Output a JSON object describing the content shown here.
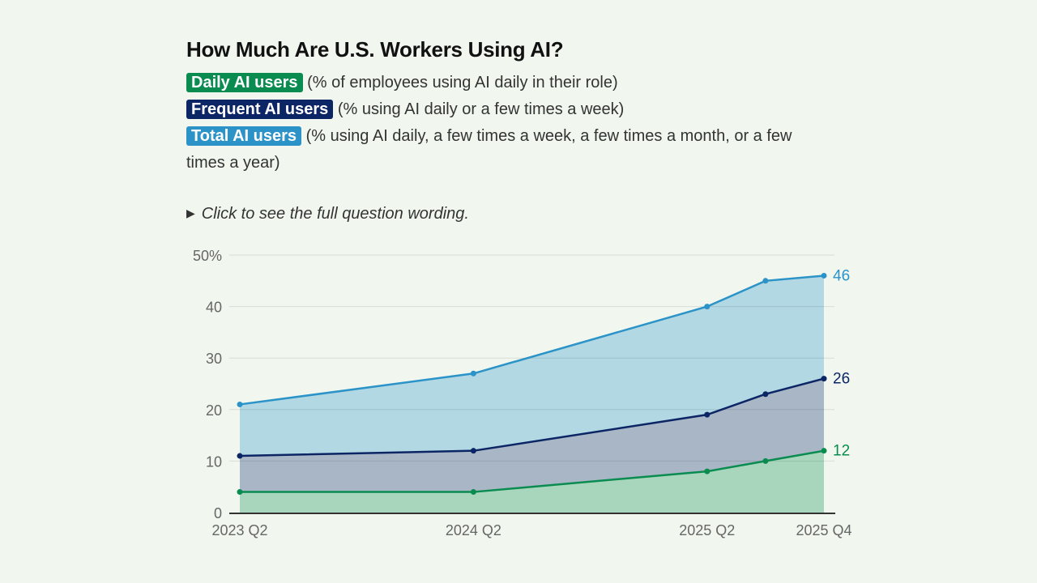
{
  "colors": {
    "daily": "#0a8c50",
    "frequent": "#0c2565",
    "total": "#2b93c8",
    "daily_fill": "#a8d6bd",
    "frequent_fill": "#a8b6c5",
    "total_fill": "#b2d8e3",
    "background": "#f1f7ef"
  },
  "legend": [
    {
      "label": "Daily AI users",
      "desc": " (% of employees using AI daily in their role)"
    },
    {
      "label": "Frequent AI users",
      "desc": " (% using AI daily or a few times a week)"
    },
    {
      "label": "Total AI users",
      "desc": " (% using AI daily, a few times a week, a few times a month, or a few times a year)"
    }
  ],
  "toggle": {
    "icon": "triangle-right-icon",
    "label": "Click to see the full question wording."
  },
  "chart_data": {
    "type": "area",
    "title": "How Much Are U.S. Workers Using AI?",
    "x": [
      "2023 Q2",
      "2024 Q2",
      "2025 Q2",
      "2025 Q3",
      "2025 Q4"
    ],
    "x_quarter_index": [
      0,
      4,
      8,
      9,
      10
    ],
    "xticks": [
      "2023 Q2",
      "2024 Q2",
      "2025 Q2",
      "2025 Q4"
    ],
    "yticks": [
      "50%",
      "40",
      "30",
      "20",
      "10",
      "0"
    ],
    "ytick_values": [
      50,
      40,
      30,
      20,
      10,
      0
    ],
    "ylim": [
      0,
      50
    ],
    "grid": true,
    "series": [
      {
        "key": "total",
        "name": "Total AI users",
        "values": [
          21,
          27,
          40,
          45,
          46
        ],
        "end_label": "46"
      },
      {
        "key": "frequent",
        "name": "Frequent AI users",
        "values": [
          11,
          12,
          19,
          23,
          26
        ],
        "end_label": "26"
      },
      {
        "key": "daily",
        "name": "Daily AI users",
        "values": [
          4,
          4,
          8,
          10,
          12
        ],
        "end_label": "12"
      }
    ]
  }
}
